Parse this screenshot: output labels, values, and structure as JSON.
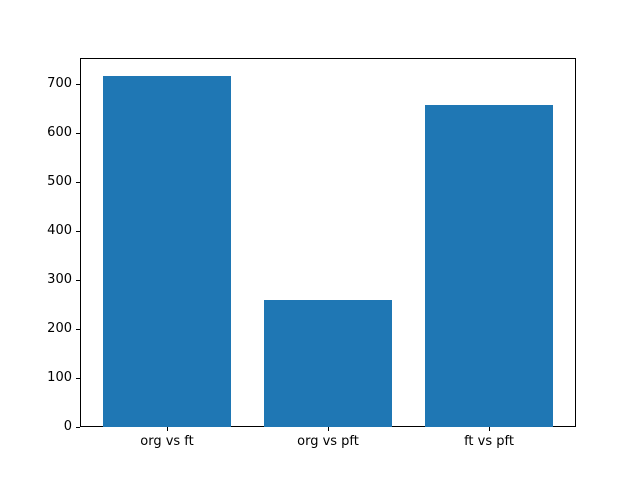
{
  "figure": {
    "background": "#ffffff"
  },
  "chart_data": {
    "type": "bar",
    "title": "",
    "xlabel": "",
    "ylabel": "",
    "categories": [
      "org vs ft",
      "org vs pft",
      "ft vs pft"
    ],
    "values": [
      718,
      259,
      657
    ],
    "bar_positions": [
      0,
      1,
      2
    ],
    "bar_width": 0.8,
    "bar_color": "#1f77b4",
    "xlim": [
      -0.54,
      2.54
    ],
    "ylim": [
      0,
      753.9
    ],
    "yticks": [
      0,
      100,
      200,
      300,
      400,
      500,
      600,
      700
    ],
    "grid": false,
    "legend": null
  }
}
